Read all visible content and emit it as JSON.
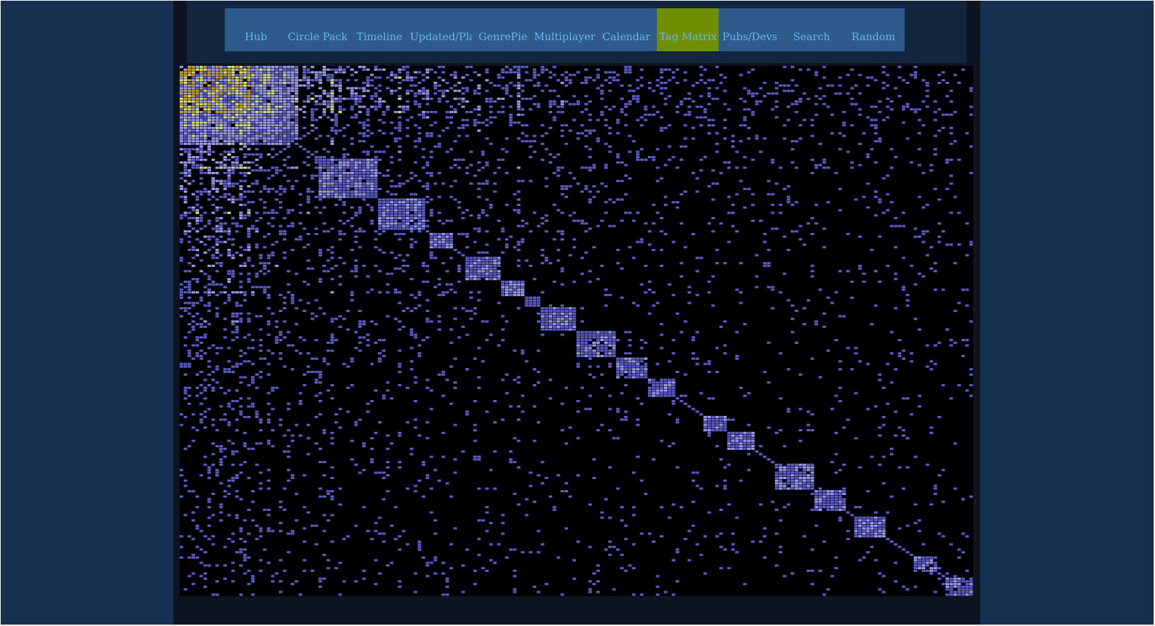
{
  "nav": {
    "items": [
      {
        "label": "Hub",
        "active": false
      },
      {
        "label": "Circle Pack",
        "active": false
      },
      {
        "label": "Timeline",
        "active": false
      },
      {
        "label": "Updated/Played",
        "active": false
      },
      {
        "label": "GenrePie",
        "active": false
      },
      {
        "label": "Multiplayer",
        "active": false
      },
      {
        "label": "Calendar",
        "active": false
      },
      {
        "label": "Tag Matrix",
        "active": true
      },
      {
        "label": "Pubs/Devs",
        "active": false
      },
      {
        "label": "Search",
        "active": false
      },
      {
        "label": "Random",
        "active": false
      }
    ]
  },
  "colors": {
    "page_bg": "#163050",
    "panel_bg": "#0e1422",
    "nav_bg": "#13253f",
    "button_bg": "#2e5a8c",
    "button_active_bg": "#6f8e00",
    "button_text": "#62b8f0",
    "cell_low": "#5c5cc8",
    "cell_mid": "#9a9ae8",
    "cell_high": "#d0e07a",
    "cell_peak": "#c8a030"
  },
  "chart_data": {
    "type": "heatmap",
    "title": "",
    "xlabel": "",
    "ylabel": "",
    "n_tags": 200,
    "symmetric": true,
    "diagonal_blocks": [
      {
        "start": 0,
        "end": 30
      },
      {
        "start": 35,
        "end": 50
      },
      {
        "start": 50,
        "end": 62
      },
      {
        "start": 63,
        "end": 69
      },
      {
        "start": 72,
        "end": 81
      },
      {
        "start": 81,
        "end": 87
      },
      {
        "start": 87,
        "end": 91
      },
      {
        "start": 91,
        "end": 100
      },
      {
        "start": 100,
        "end": 110
      },
      {
        "start": 110,
        "end": 118
      },
      {
        "start": 118,
        "end": 125
      },
      {
        "start": 132,
        "end": 138
      },
      {
        "start": 138,
        "end": 145
      },
      {
        "start": 150,
        "end": 160
      },
      {
        "start": 160,
        "end": 168
      },
      {
        "start": 170,
        "end": 178
      },
      {
        "start": 185,
        "end": 191
      },
      {
        "start": 193,
        "end": 200
      }
    ],
    "note_density": "dense in upper-left tags, sparse toward lower-right; bright yellow cells concentrate in the upper-left block"
  }
}
